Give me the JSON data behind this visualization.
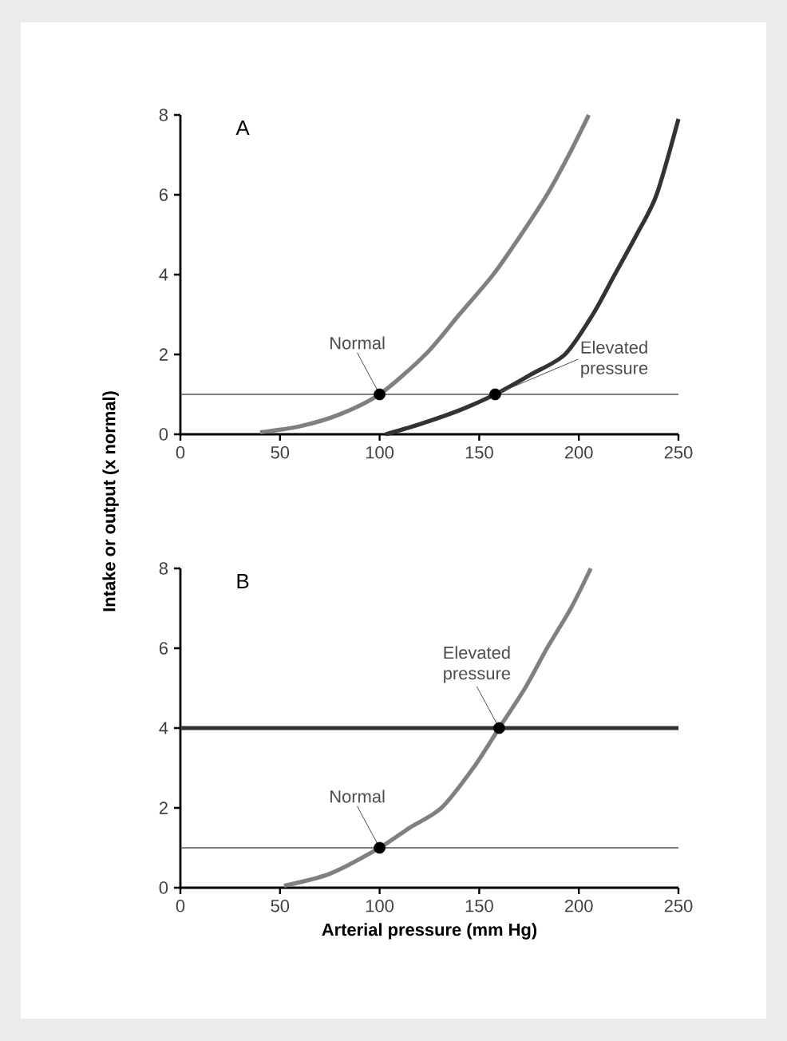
{
  "chart_data": [
    {
      "type": "line",
      "title": "A",
      "ylabel": "Intake or output (x normal)",
      "xlim": [
        0,
        250
      ],
      "ylim": [
        0,
        8
      ],
      "xticks": [
        0,
        50,
        100,
        150,
        200,
        250
      ],
      "yticks": [
        0,
        2,
        4,
        6,
        8
      ],
      "grid": false,
      "series": [
        {
          "type": "line",
          "color": "#808080",
          "x": [
            40,
            60,
            80,
            100,
            123,
            140,
            157,
            171,
            184,
            195,
            205
          ],
          "values": [
            0.05,
            0.2,
            0.5,
            1,
            2,
            3,
            4,
            5,
            6,
            7,
            8
          ]
        },
        {
          "type": "line",
          "color": "#333333",
          "x": [
            103,
            120,
            140,
            158,
            176,
            193,
            207,
            218,
            229,
            239,
            250
          ],
          "values": [
            0,
            0.25,
            0.6,
            1,
            1.5,
            2,
            3,
            4,
            5,
            6,
            7.9
          ]
        },
        {
          "type": "scatter",
          "color": "#000000",
          "x": [
            100,
            158
          ],
          "values": [
            1,
            1
          ]
        }
      ],
      "ref_lines": [
        {
          "axis": "y",
          "value": 1,
          "color": "#555555"
        }
      ],
      "annotations": [
        {
          "text": "Normal",
          "x": 100,
          "y": 1
        },
        {
          "text": "Elevated pressure",
          "x": 158,
          "y": 1
        }
      ]
    },
    {
      "type": "line",
      "title": "B",
      "xlabel": "Arterial pressure (mm Hg)",
      "xlim": [
        0,
        250
      ],
      "ylim": [
        0,
        8
      ],
      "xticks": [
        0,
        50,
        100,
        150,
        200,
        250
      ],
      "yticks": [
        0,
        2,
        4,
        6,
        8
      ],
      "grid": false,
      "series": [
        {
          "type": "line",
          "color": "#808080",
          "x": [
            52,
            75,
            100,
            115,
            131,
            147,
            160,
            173,
            184,
            196,
            206
          ],
          "values": [
            0.05,
            0.35,
            1,
            1.5,
            2,
            3,
            4,
            5,
            6,
            7,
            8
          ]
        },
        {
          "type": "line",
          "color": "#333333",
          "x": [
            0,
            250
          ],
          "values": [
            4,
            4
          ]
        },
        {
          "type": "scatter",
          "color": "#000000",
          "x": [
            100,
            160
          ],
          "values": [
            1,
            4
          ]
        }
      ],
      "ref_lines": [
        {
          "axis": "y",
          "value": 1,
          "color": "#555555"
        }
      ],
      "annotations": [
        {
          "text": "Normal",
          "x": 100,
          "y": 1
        },
        {
          "text": "Elevated pressure",
          "x": 160,
          "y": 4
        }
      ]
    }
  ]
}
